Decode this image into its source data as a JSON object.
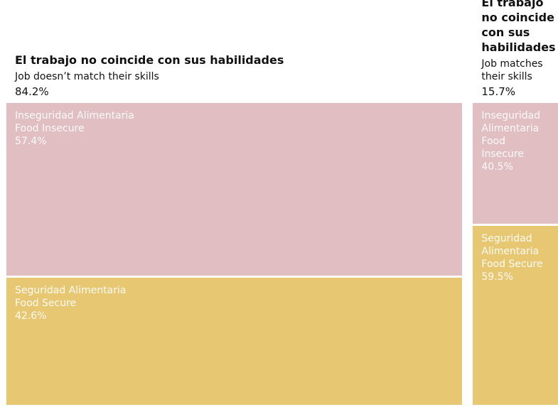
{
  "chart_data": {
    "type": "mosaic",
    "columns": [
      {
        "title": "El trabajo no coincide con sus habilidades",
        "subtitle": "Job doesn’t match their skills",
        "value": 84.2,
        "value_label": "84.2%",
        "segments": [
          {
            "name_es": "Inseguridad Alimentaria",
            "name": "Food Insecure",
            "color": "#e0bec2",
            "value": 57.4,
            "value_label": "57.4%"
          },
          {
            "name_es": "Seguridad Alimentaria",
            "name": "Food Secure",
            "color": "#e8c772",
            "value": 42.6,
            "value_label": "42.6%"
          }
        ]
      },
      {
        "title": "El trabajo no coincide con sus habilidades",
        "subtitle": "Job matches their skills",
        "value": 15.7,
        "value_label": "15.7%",
        "segments": [
          {
            "name_es": "Inseguridad Alimentaria",
            "name": "Food Insecure",
            "color": "#e0bec2",
            "value": 40.5,
            "value_label": "40.5%"
          },
          {
            "name_es": "Seguridad Alimentaria",
            "name": "Food Secure",
            "color": "#e8c772",
            "value": 59.5,
            "value_label": "59.5%"
          }
        ]
      }
    ]
  }
}
